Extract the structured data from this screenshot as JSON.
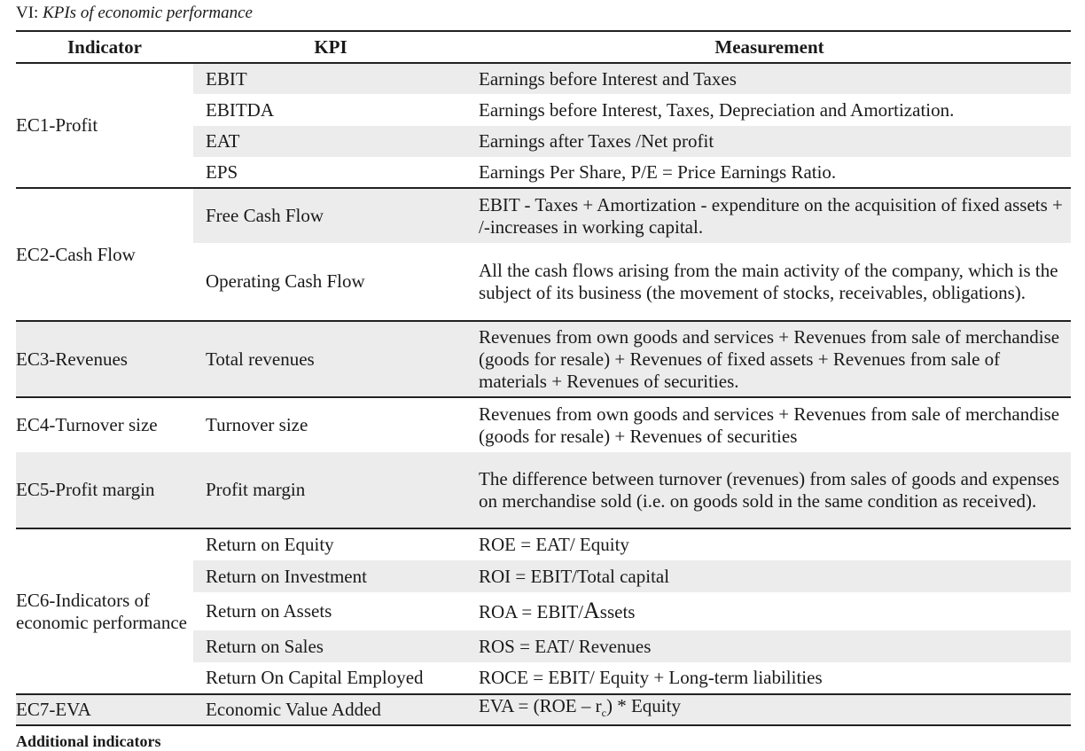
{
  "caption": {
    "prefix": "VI:",
    "title": "KPIs of economic performance"
  },
  "headers": {
    "indicator": "Indicator",
    "kpi": "KPI",
    "measurement": "Measurement"
  },
  "groups": [
    {
      "indicator": "EC1-Profit",
      "rows": [
        {
          "kpi": "EBIT",
          "measurement": "Earnings before Interest and Taxes"
        },
        {
          "kpi": "EBITDA",
          "measurement": "Earnings before Interest, Taxes, Depreciation and Amortization."
        },
        {
          "kpi": "EAT",
          "measurement": "Earnings after Taxes /Net profit"
        },
        {
          "kpi": "EPS",
          "measurement": "Earnings Per Share, P/E = Price Earnings Ratio."
        }
      ]
    },
    {
      "indicator": "EC2-Cash Flow",
      "rows": [
        {
          "kpi": "Free Cash Flow",
          "measurement": "EBIT - Taxes + Amortization - expenditure on the acquisition of fixed assets + /-increases in working capital."
        },
        {
          "kpi": "Operating Cash Flow",
          "measurement": "All the cash flows arising from the main activity of the company, which is the subject of its business (the movement of stocks, receivables, obligations)."
        }
      ]
    },
    {
      "indicator": "EC3-Revenues",
      "rows": [
        {
          "kpi": "Total revenues",
          "measurement": "Revenues from own goods and services + Revenues from sale of merchandise (goods for resale) + Revenues of fixed assets + Revenues from sale of materials + Revenues of securities."
        }
      ]
    },
    {
      "indicator": "EC4-Turnover size",
      "rows": [
        {
          "kpi": "Turnover size",
          "measurement": "Revenues from own goods and services + Revenues from sale of merchandise (goods for resale) + Revenues of securities"
        }
      ]
    },
    {
      "indicator": "EC5-Profit margin",
      "rows": [
        {
          "kpi": "Profit margin",
          "measurement": "The difference between turnover (revenues) from sales of goods and expenses on merchandise sold (i.e. on goods sold in the same condition as received)."
        }
      ]
    },
    {
      "indicator": "EC6-Indicators of economic performance",
      "rows": [
        {
          "kpi": "Return on Equity",
          "measurement": "ROE = EAT/ Equity"
        },
        {
          "kpi": "Return on Investment",
          "measurement": "ROI = EBIT/Total capital"
        },
        {
          "kpi": "Return on Assets",
          "measurement_pre": "ROA = EBIT/",
          "measurement_big": "A",
          "measurement_post": "ssets"
        },
        {
          "kpi": "Return on Sales",
          "measurement": "ROS = EAT/ Revenues"
        },
        {
          "kpi": "Return On Capital Employed",
          "measurement": "ROCE = EBIT/ Equity + Long-term liabilities"
        }
      ]
    },
    {
      "indicator": "EC7-EVA",
      "rows": [
        {
          "kpi": "Economic Value Added",
          "measurement_pre": "EVA = (ROE – r",
          "measurement_sub": "c",
          "measurement_post": ") * Equity"
        }
      ]
    }
  ],
  "footnote": "Additional indicators"
}
